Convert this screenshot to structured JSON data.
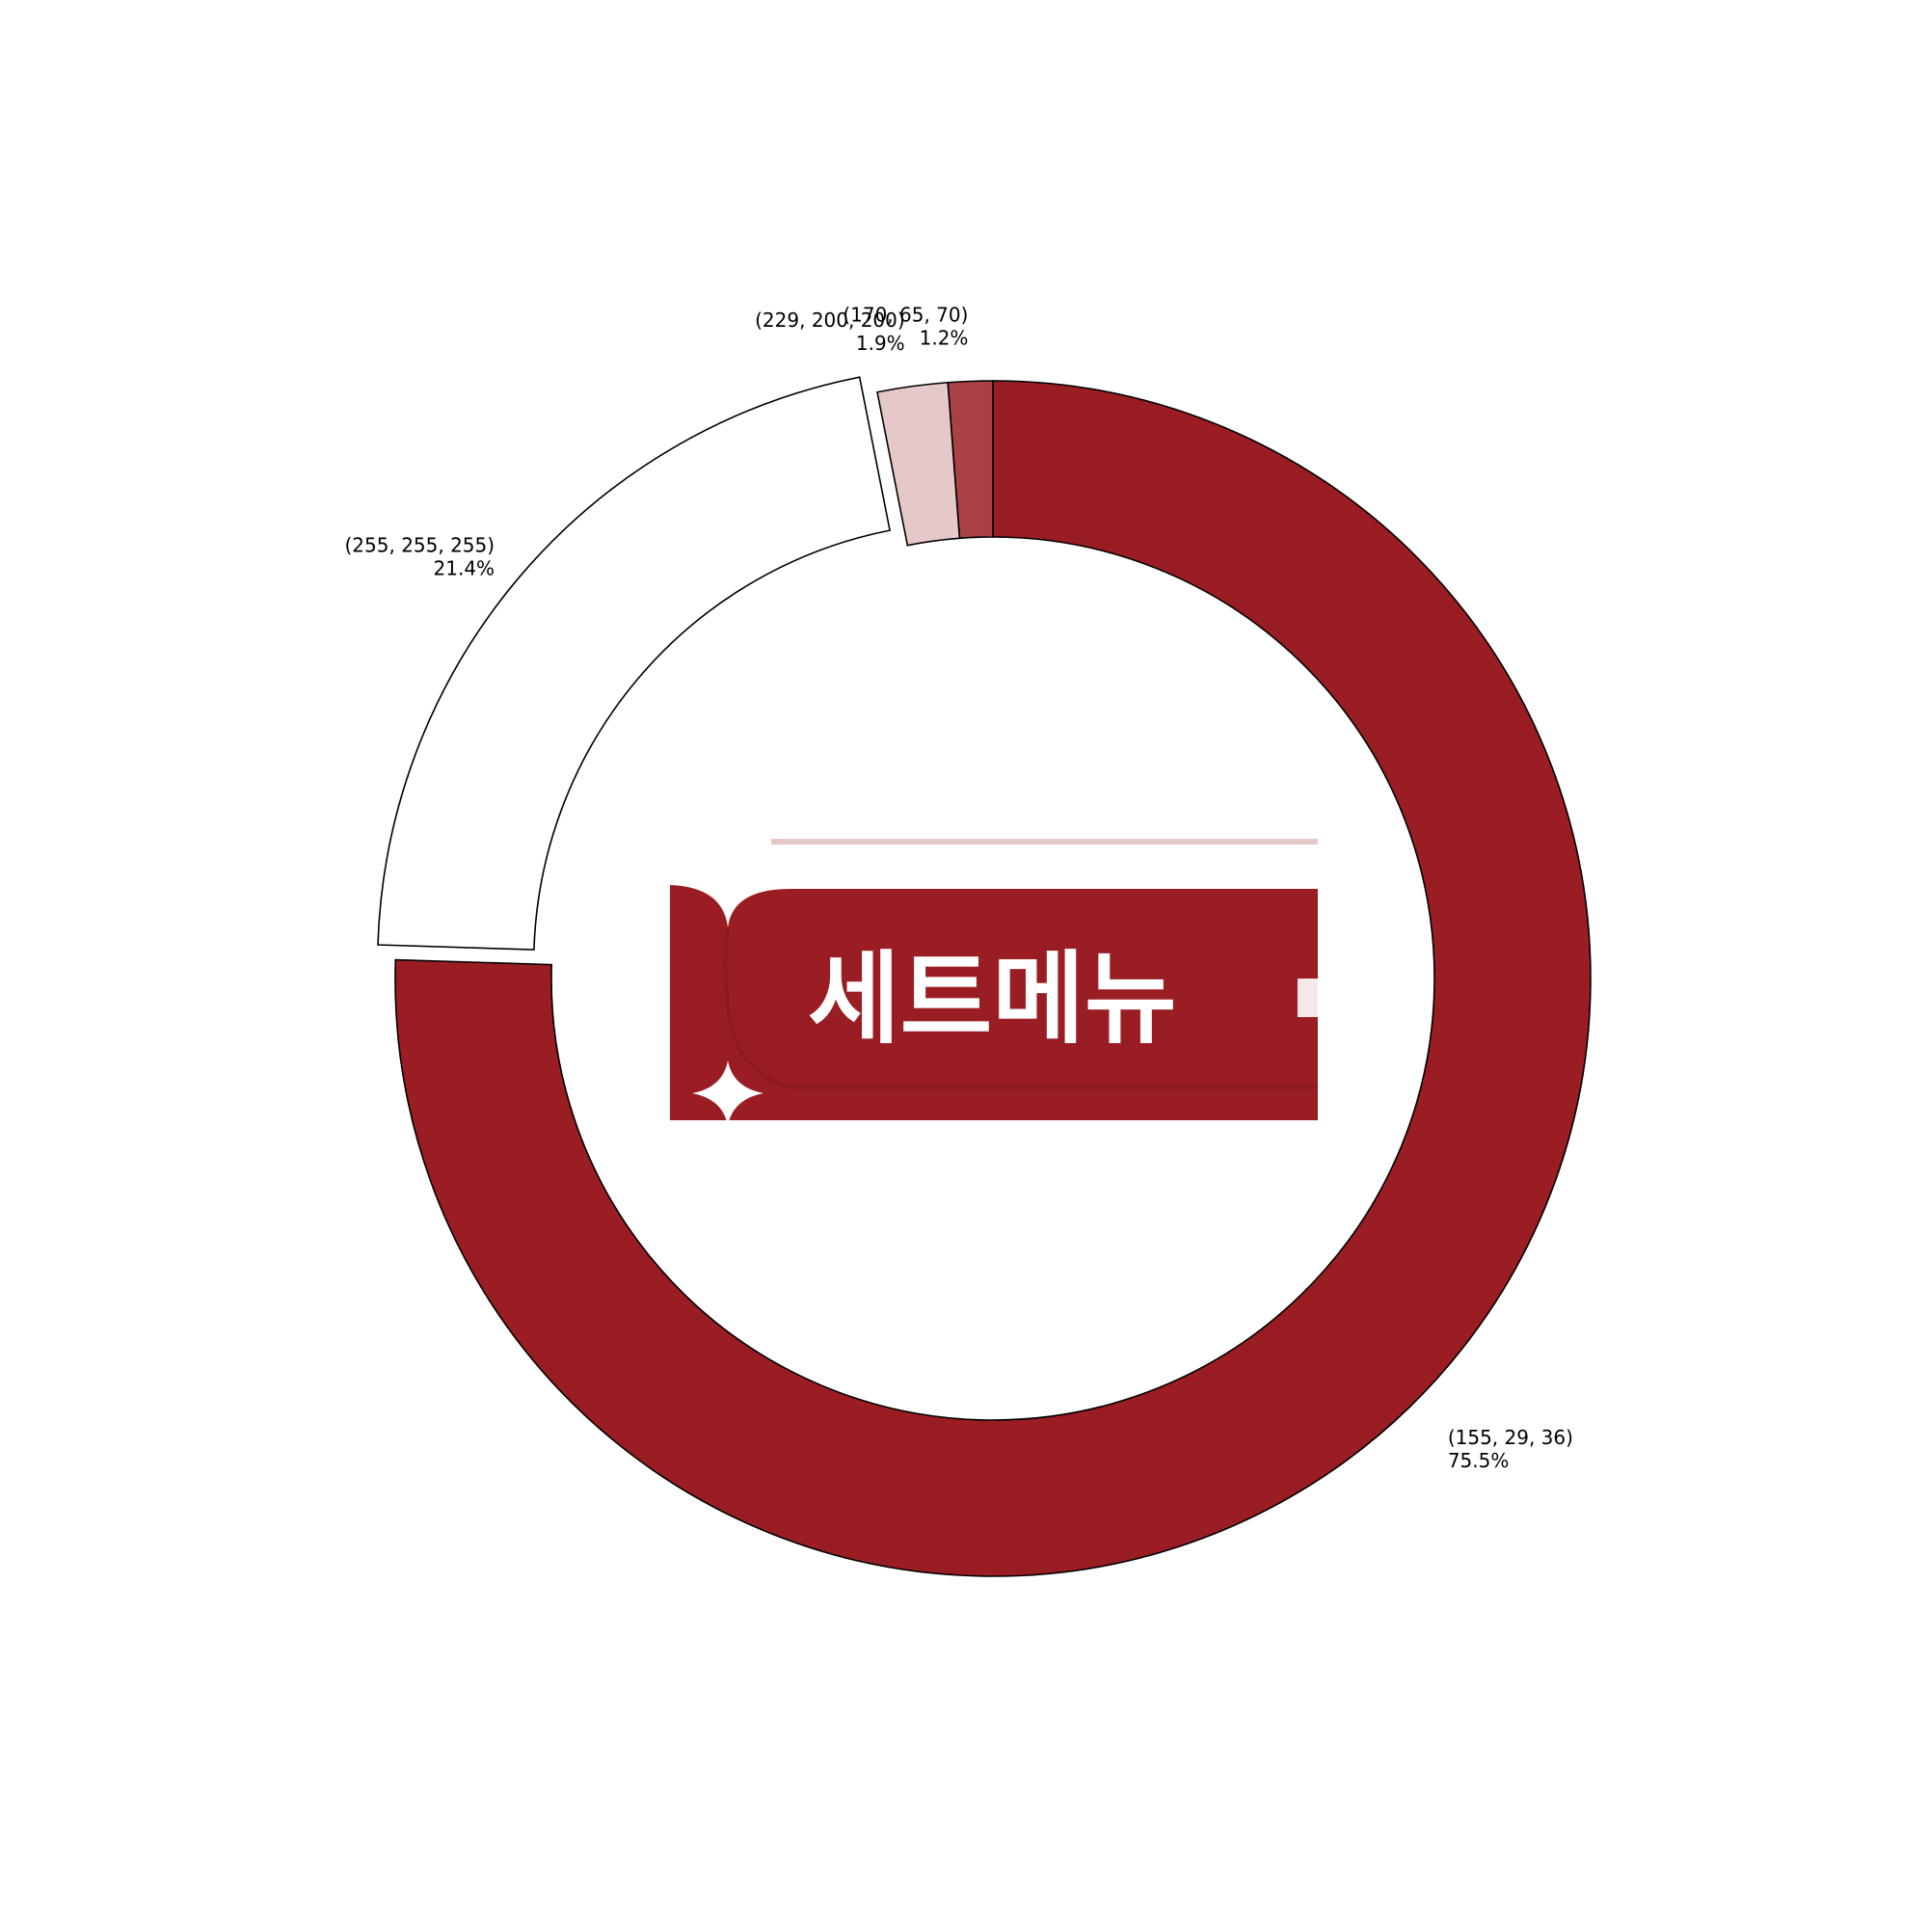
{
  "chart_data": {
    "type": "pie",
    "variant": "donut",
    "slices": [
      {
        "label": "(155, 29, 36)",
        "value": 75.5,
        "pct_label": "75.5%",
        "color": "#9b1d24"
      },
      {
        "label": "(255, 255, 255)",
        "value": 21.4,
        "pct_label": "21.4%",
        "color": "#ffffff",
        "exploded": true
      },
      {
        "label": "(229, 200, 200)",
        "value": 1.9,
        "pct_label": "1.9%",
        "color": "#e5c8c8"
      },
      {
        "label": "(170, 65, 70)",
        "value": 1.2,
        "pct_label": "1.2%",
        "color": "#aa4146"
      }
    ],
    "start_angle": "top",
    "direction": "clockwise",
    "legend": "none",
    "grid": false
  },
  "center_image": {
    "text": "세트메뉴",
    "background_color": "#9b1d24",
    "text_color": "#ffffff",
    "top_band_color": "#ffffff",
    "icon": "sparkle-icon"
  }
}
